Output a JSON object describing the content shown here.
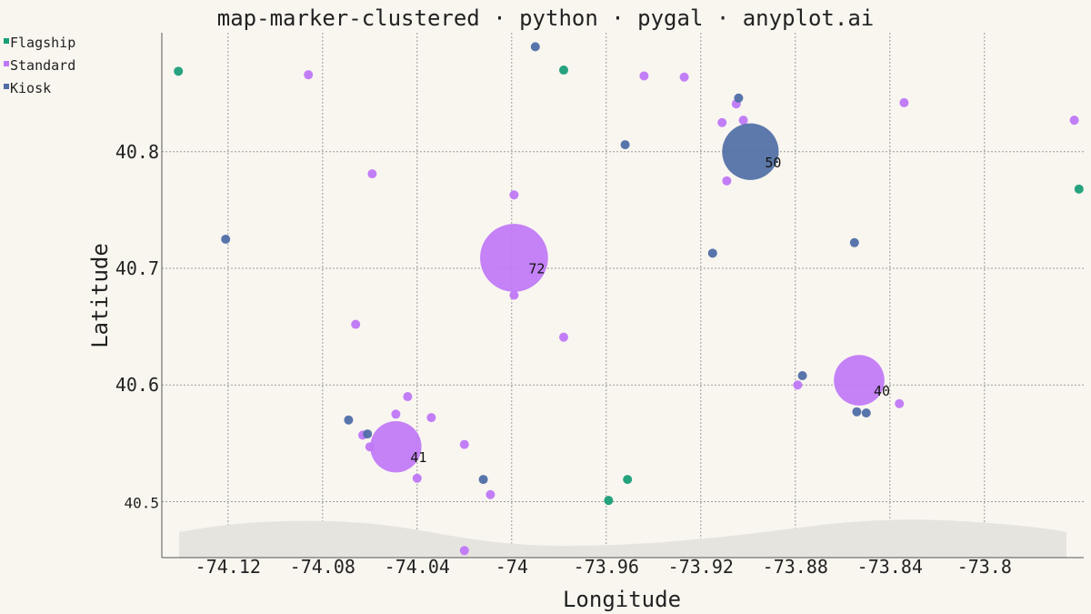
{
  "chart_data": {
    "type": "scatter",
    "title": "map-marker-clustered · python · pygal · anyplot.ai",
    "xlabel": "Longitude",
    "ylabel": "Latitude",
    "xlim": [
      -74.148,
      -73.758
    ],
    "ylim": [
      40.452,
      40.902
    ],
    "x_ticks": [
      "-74.12",
      "-74.08",
      "-74.04",
      "-74",
      "-73.96",
      "-73.92",
      "-73.88",
      "-73.84",
      "-73.8"
    ],
    "y_ticks": [
      "40.8",
      "40.7",
      "40.6",
      "40.5"
    ],
    "grid": true,
    "legend_position": "top-left",
    "series": [
      {
        "name": "Flagship",
        "color": "#1a9e77",
        "points": [
          {
            "x": -74.141,
            "y": 40.869
          },
          {
            "x": -73.978,
            "y": 40.87
          },
          {
            "x": -73.76,
            "y": 40.768
          },
          {
            "x": -73.951,
            "y": 40.519
          },
          {
            "x": -73.959,
            "y": 40.501
          }
        ]
      },
      {
        "name": "Standard",
        "color": "#bf77f6",
        "points": [
          {
            "x": -74.086,
            "y": 40.866
          },
          {
            "x": -73.944,
            "y": 40.865
          },
          {
            "x": -73.927,
            "y": 40.864
          },
          {
            "x": -73.905,
            "y": 40.841
          },
          {
            "x": -73.911,
            "y": 40.825
          },
          {
            "x": -73.902,
            "y": 40.827
          },
          {
            "x": -73.834,
            "y": 40.842
          },
          {
            "x": -73.762,
            "y": 40.827
          },
          {
            "x": -73.909,
            "y": 40.775
          },
          {
            "x": -74.059,
            "y": 40.781
          },
          {
            "x": -73.999,
            "y": 40.763
          },
          {
            "x": -73.999,
            "y": 40.677
          },
          {
            "x": -74.066,
            "y": 40.652
          },
          {
            "x": -73.978,
            "y": 40.641
          },
          {
            "x": -73.879,
            "y": 40.6
          },
          {
            "x": -73.836,
            "y": 40.584
          },
          {
            "x": -74.044,
            "y": 40.59
          },
          {
            "x": -74.049,
            "y": 40.575
          },
          {
            "x": -74.034,
            "y": 40.572
          },
          {
            "x": -74.063,
            "y": 40.557
          },
          {
            "x": -74.06,
            "y": 40.547
          },
          {
            "x": -74.02,
            "y": 40.549
          },
          {
            "x": -74.04,
            "y": 40.52
          },
          {
            "x": -74.009,
            "y": 40.506
          },
          {
            "x": -74.02,
            "y": 40.458
          }
        ]
      },
      {
        "name": "Kiosk",
        "color": "#4f6ea6",
        "points": [
          {
            "x": -73.99,
            "y": 40.89
          },
          {
            "x": -73.904,
            "y": 40.846
          },
          {
            "x": -73.952,
            "y": 40.806
          },
          {
            "x": -74.121,
            "y": 40.725
          },
          {
            "x": -73.915,
            "y": 40.713
          },
          {
            "x": -73.855,
            "y": 40.722
          },
          {
            "x": -73.877,
            "y": 40.608
          },
          {
            "x": -73.854,
            "y": 40.577
          },
          {
            "x": -73.85,
            "y": 40.576
          },
          {
            "x": -74.069,
            "y": 40.57
          },
          {
            "x": -74.061,
            "y": 40.558
          },
          {
            "x": -74.012,
            "y": 40.519
          }
        ]
      }
    ],
    "clusters": [
      {
        "series": "Standard",
        "x": -73.999,
        "y": 40.709,
        "count": 72,
        "label": "72"
      },
      {
        "series": "Kiosk",
        "x": -73.899,
        "y": 40.8,
        "count": 50,
        "label": "50"
      },
      {
        "series": "Standard",
        "x": -73.853,
        "y": 40.604,
        "count": 40,
        "label": "40"
      },
      {
        "series": "Standard",
        "x": -74.049,
        "y": 40.547,
        "count": 41,
        "label": "41"
      }
    ]
  }
}
